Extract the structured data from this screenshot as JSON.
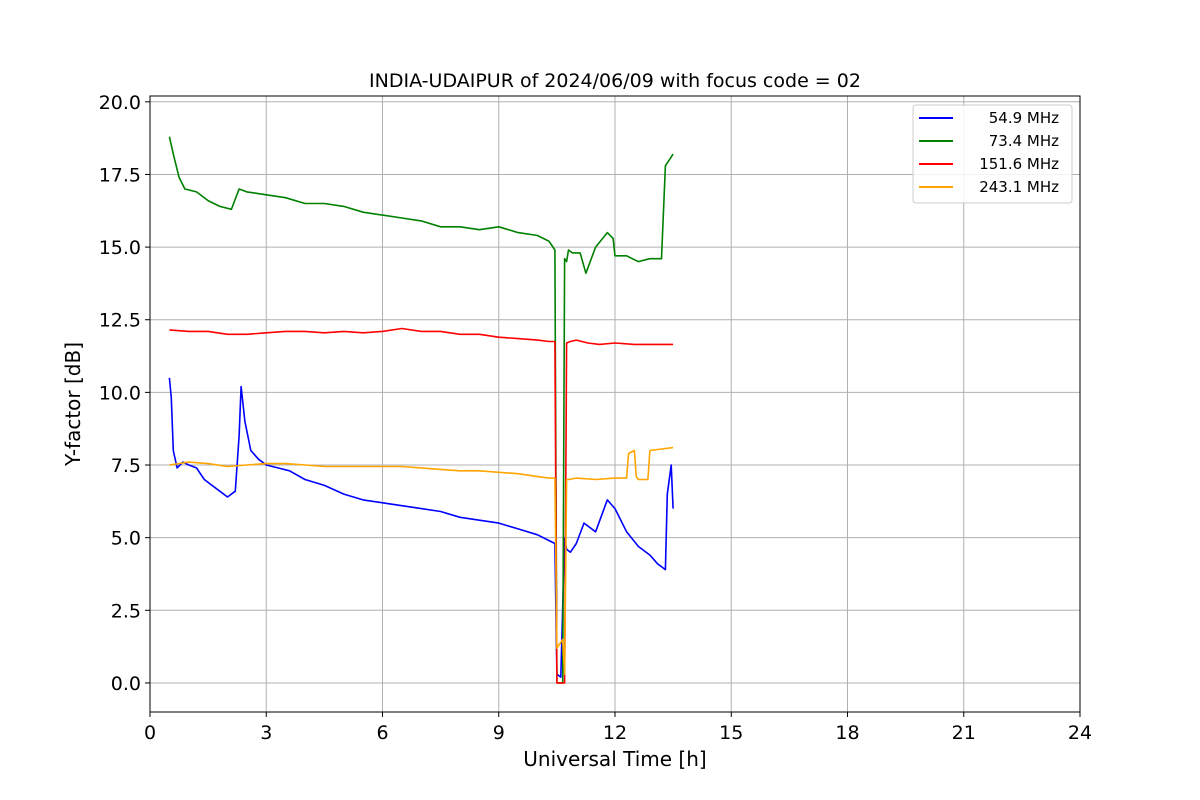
{
  "chart_data": {
    "type": "line",
    "title": "INDIA-UDAIPUR of 2024/06/09 with focus code = 02",
    "xlabel": "Universal Time [h]",
    "ylabel": "Y-factor [dB]",
    "xlim": [
      0,
      24
    ],
    "ylim": [
      -1.0,
      20.2
    ],
    "xticks": [
      0,
      3,
      6,
      9,
      12,
      15,
      18,
      21,
      24
    ],
    "yticks": [
      0.0,
      2.5,
      5.0,
      7.5,
      10.0,
      12.5,
      15.0,
      17.5,
      20.0
    ],
    "xtick_labels": [
      "0",
      "3",
      "6",
      "9",
      "12",
      "15",
      "18",
      "21",
      "24"
    ],
    "ytick_labels": [
      "0.0",
      "2.5",
      "5.0",
      "7.5",
      "10.0",
      "12.5",
      "15.0",
      "17.5",
      "20.0"
    ],
    "grid": true,
    "legend_position": "top-right",
    "series": [
      {
        "name": "54.9 MHz",
        "color": "#0000ff",
        "x": [
          0.5,
          0.55,
          0.6,
          0.7,
          0.85,
          1.0,
          1.2,
          1.4,
          1.6,
          1.8,
          2.0,
          2.2,
          2.3,
          2.35,
          2.45,
          2.6,
          2.8,
          3.0,
          3.3,
          3.6,
          4.0,
          4.5,
          5.0,
          5.5,
          6.0,
          6.5,
          7.0,
          7.5,
          8.0,
          8.5,
          9.0,
          9.5,
          10.0,
          10.3,
          10.45,
          10.5,
          10.6,
          10.7,
          10.75,
          10.85,
          11.0,
          11.2,
          11.5,
          11.8,
          12.0,
          12.3,
          12.6,
          12.9,
          13.1,
          13.3,
          13.35,
          13.45,
          13.5
        ],
        "y": [
          10.5,
          9.8,
          8.0,
          7.4,
          7.6,
          7.5,
          7.4,
          7.0,
          6.8,
          6.6,
          6.4,
          6.6,
          8.5,
          10.2,
          9.0,
          8.0,
          7.7,
          7.5,
          7.4,
          7.3,
          7.0,
          6.8,
          6.5,
          6.3,
          6.2,
          6.1,
          6.0,
          5.9,
          5.7,
          5.6,
          5.5,
          5.3,
          5.1,
          4.9,
          4.8,
          0.3,
          0.2,
          5.0,
          4.6,
          4.5,
          4.8,
          5.5,
          5.2,
          6.3,
          6.0,
          5.2,
          4.7,
          4.4,
          4.1,
          3.9,
          6.5,
          7.5,
          6.0
        ]
      },
      {
        "name": "73.4 MHz",
        "color": "#008000",
        "x": [
          0.5,
          0.6,
          0.75,
          0.9,
          1.2,
          1.5,
          1.8,
          2.1,
          2.3,
          2.5,
          3.0,
          3.5,
          4.0,
          4.5,
          5.0,
          5.5,
          6.0,
          6.5,
          7.0,
          7.5,
          8.0,
          8.5,
          9.0,
          9.5,
          10.0,
          10.3,
          10.45,
          10.5,
          10.55,
          10.65,
          10.7,
          10.75,
          10.8,
          10.9,
          11.1,
          11.25,
          11.5,
          11.8,
          11.95,
          12.0,
          12.3,
          12.6,
          12.9,
          13.2,
          13.3,
          13.4,
          13.5
        ],
        "y": [
          18.8,
          18.2,
          17.4,
          17.0,
          16.9,
          16.6,
          16.4,
          16.3,
          17.0,
          16.9,
          16.8,
          16.7,
          16.5,
          16.5,
          16.4,
          16.2,
          16.1,
          16.0,
          15.9,
          15.7,
          15.7,
          15.6,
          15.7,
          15.5,
          15.4,
          15.2,
          14.9,
          0.0,
          0.0,
          0.0,
          14.6,
          14.5,
          14.9,
          14.8,
          14.8,
          14.1,
          15.0,
          15.5,
          15.3,
          14.7,
          14.7,
          14.5,
          14.6,
          14.6,
          17.8,
          18.0,
          18.2
        ]
      },
      {
        "name": "151.6 MHz",
        "color": "#ff0000",
        "x": [
          0.5,
          1.0,
          1.5,
          2.0,
          2.5,
          3.0,
          3.5,
          4.0,
          4.5,
          5.0,
          5.5,
          6.0,
          6.5,
          7.0,
          7.5,
          8.0,
          8.5,
          9.0,
          9.5,
          10.0,
          10.3,
          10.45,
          10.5,
          10.55,
          10.65,
          10.7,
          10.75,
          10.85,
          11.0,
          11.3,
          11.6,
          12.0,
          12.5,
          13.0,
          13.5
        ],
        "y": [
          12.15,
          12.1,
          12.1,
          12.0,
          12.0,
          12.05,
          12.1,
          12.1,
          12.05,
          12.1,
          12.05,
          12.1,
          12.2,
          12.1,
          12.1,
          12.0,
          12.0,
          11.9,
          11.85,
          11.8,
          11.75,
          11.75,
          0.0,
          0.0,
          0.0,
          0.0,
          11.7,
          11.75,
          11.8,
          11.7,
          11.65,
          11.7,
          11.65,
          11.65,
          11.65
        ]
      },
      {
        "name": "243.1 MHz",
        "color": "#ffa500",
        "x": [
          0.5,
          1.0,
          1.5,
          2.0,
          2.5,
          3.0,
          3.5,
          4.0,
          4.5,
          5.0,
          5.5,
          6.0,
          6.5,
          7.0,
          7.5,
          8.0,
          8.5,
          9.0,
          9.5,
          10.0,
          10.3,
          10.45,
          10.5,
          10.55,
          10.65,
          10.7,
          10.75,
          10.8,
          11.0,
          11.5,
          12.0,
          12.3,
          12.35,
          12.5,
          12.55,
          12.6,
          12.85,
          12.9,
          13.2,
          13.5
        ],
        "y": [
          7.5,
          7.6,
          7.55,
          7.45,
          7.5,
          7.55,
          7.55,
          7.5,
          7.45,
          7.45,
          7.45,
          7.45,
          7.45,
          7.4,
          7.35,
          7.3,
          7.3,
          7.25,
          7.2,
          7.1,
          7.05,
          7.05,
          1.2,
          1.3,
          1.5,
          0.3,
          7.0,
          7.0,
          7.05,
          7.0,
          7.05,
          7.05,
          7.9,
          8.0,
          7.1,
          7.0,
          7.0,
          8.0,
          8.05,
          8.1
        ]
      }
    ]
  }
}
